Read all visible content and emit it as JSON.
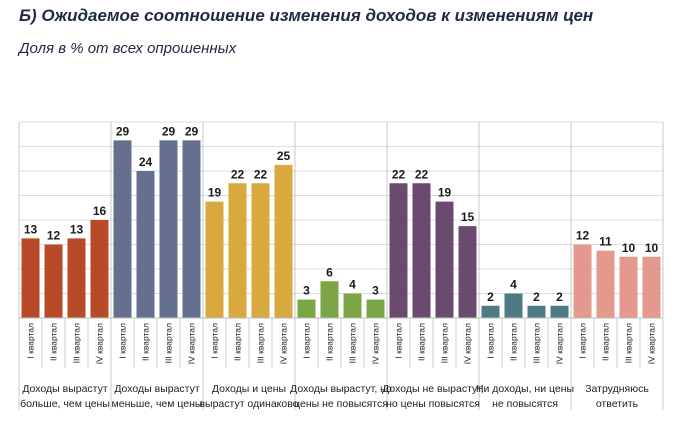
{
  "chart_data": {
    "type": "bar",
    "title": "Б) Ожидаемое соотношение изменения доходов к изменениям цен",
    "subtitle": "Доля в % от всех опрошенных",
    "ylim": [
      0,
      32
    ],
    "grid": true,
    "quarter_labels": [
      "I квартал",
      "II квартал",
      "III квартал",
      "IV квартал"
    ],
    "groups": [
      {
        "label_lines": [
          "Доходы вырастут",
          "больше, чем цены"
        ],
        "color": "#b84a27",
        "values": [
          13,
          12,
          13,
          16
        ]
      },
      {
        "label_lines": [
          "Доходы вырастут",
          "меньше, чем цены"
        ],
        "color": "#65708f",
        "values": [
          29,
          24,
          29,
          29
        ]
      },
      {
        "label_lines": [
          "Доходы и цены",
          "вырастут одинаково"
        ],
        "color": "#d9a93f",
        "values": [
          19,
          22,
          22,
          25
        ]
      },
      {
        "label_lines": [
          "Доходы вырастут, но",
          "цены не повысятся"
        ],
        "color": "#7aa645",
        "values": [
          3,
          6,
          4,
          3
        ]
      },
      {
        "label_lines": [
          "Доходы не вырастут,",
          "но цены повысятся"
        ],
        "color": "#6a4a6e",
        "values": [
          22,
          22,
          19,
          15
        ]
      },
      {
        "label_lines": [
          "Ни доходы, ни цены",
          "не повысятся"
        ],
        "color": "#4e7a86",
        "values": [
          2,
          4,
          2,
          2
        ]
      },
      {
        "label_lines": [
          "Затрудняюсь",
          "ответить"
        ],
        "color": "#e3998c",
        "values": [
          12,
          11,
          10,
          10
        ]
      }
    ]
  }
}
